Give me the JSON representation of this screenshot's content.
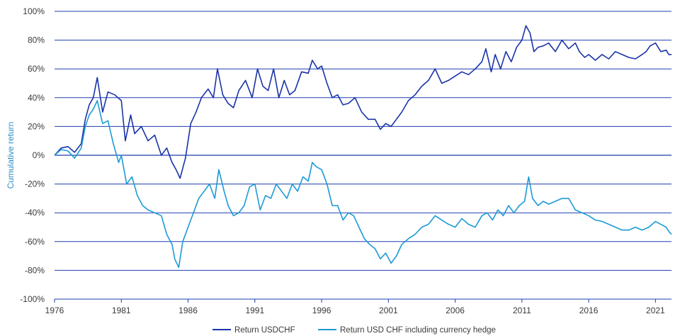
{
  "chart_data": {
    "type": "line",
    "title": "",
    "xlabel": "",
    "ylabel": "Cumulative return",
    "xlim": [
      1976,
      2022.2
    ],
    "ylim": [
      -100,
      100
    ],
    "x_ticks": [
      "1976",
      "1981",
      "1986",
      "1991",
      "1996",
      "2001",
      "2006",
      "2011",
      "2016",
      "2021"
    ],
    "y_ticks": [
      "100%",
      "80%",
      "60%",
      "40%",
      "20%",
      "0%",
      "-20%",
      "-40%",
      "-60%",
      "-80%",
      "-100%"
    ],
    "grid": true,
    "legend_position": "bottom",
    "series": [
      {
        "name": "Return USDCHF",
        "color": "#1a33a8",
        "x": [
          1976,
          1976.5,
          1977,
          1977.5,
          1978,
          1978.3,
          1978.6,
          1978.9,
          1979.2,
          1979.6,
          1980,
          1980.5,
          1981,
          1981.3,
          1981.7,
          1982,
          1982.5,
          1983,
          1983.5,
          1984,
          1984.4,
          1984.8,
          1985.1,
          1985.4,
          1985.8,
          1986.2,
          1986.6,
          1987,
          1987.5,
          1987.9,
          1988.2,
          1988.6,
          1989,
          1989.4,
          1989.8,
          1990.3,
          1990.8,
          1991.2,
          1991.6,
          1992,
          1992.4,
          1992.8,
          1993.2,
          1993.6,
          1994,
          1994.5,
          1995,
          1995.3,
          1995.7,
          1996,
          1996.4,
          1996.8,
          1997.2,
          1997.6,
          1998,
          1998.5,
          1999,
          1999.5,
          2000,
          2000.4,
          2000.8,
          2001.2,
          2001.6,
          2002,
          2002.5,
          2003,
          2003.5,
          2004,
          2004.5,
          2005,
          2005.5,
          2006,
          2006.5,
          2007,
          2007.5,
          2008,
          2008.3,
          2008.7,
          2009,
          2009.4,
          2009.8,
          2010.2,
          2010.6,
          2011,
          2011.3,
          2011.6,
          2011.9,
          2012.2,
          2012.6,
          2013,
          2013.5,
          2014,
          2014.5,
          2015,
          2015.3,
          2015.7,
          2016,
          2016.5,
          2017,
          2017.5,
          2018,
          2018.5,
          2019,
          2019.5,
          2020,
          2020.3,
          2020.6,
          2021,
          2021.4,
          2021.8,
          2022,
          2022.2
        ],
        "values": [
          0,
          5,
          6,
          2,
          8,
          25,
          35,
          40,
          54,
          30,
          44,
          42,
          38,
          10,
          28,
          15,
          20,
          10,
          14,
          0,
          5,
          -5,
          -10,
          -16,
          -2,
          22,
          30,
          40,
          46,
          40,
          60,
          42,
          36,
          33,
          45,
          52,
          40,
          60,
          48,
          45,
          60,
          40,
          52,
          42,
          45,
          58,
          57,
          66,
          60,
          62,
          50,
          40,
          42,
          35,
          36,
          40,
          30,
          25,
          25,
          18,
          22,
          20,
          25,
          30,
          38,
          42,
          48,
          52,
          60,
          50,
          52,
          55,
          58,
          56,
          60,
          65,
          74,
          58,
          70,
          60,
          72,
          65,
          75,
          80,
          90,
          85,
          72,
          75,
          76,
          78,
          72,
          80,
          74,
          78,
          72,
          68,
          70,
          66,
          70,
          67,
          72,
          70,
          68,
          67,
          70,
          72,
          76,
          78,
          72,
          73,
          70,
          70
        ]
      },
      {
        "name": "Return USD CHF including currency hedge",
        "color": "#1b9ad6",
        "x": [
          1976,
          1976.5,
          1977,
          1977.5,
          1978,
          1978.3,
          1978.6,
          1978.9,
          1979.2,
          1979.6,
          1980,
          1980.4,
          1980.8,
          1981,
          1981.4,
          1981.8,
          1982.2,
          1982.6,
          1983,
          1983.5,
          1984,
          1984.4,
          1984.8,
          1985,
          1985.3,
          1985.6,
          1986,
          1986.4,
          1986.8,
          1987.2,
          1987.6,
          1988,
          1988.3,
          1988.7,
          1989,
          1989.4,
          1989.8,
          1990.2,
          1990.6,
          1991,
          1991.4,
          1991.8,
          1992.2,
          1992.6,
          1993,
          1993.4,
          1993.8,
          1994.2,
          1994.6,
          1995,
          1995.3,
          1995.6,
          1996,
          1996.4,
          1996.8,
          1997.2,
          1997.6,
          1998,
          1998.4,
          1998.8,
          1999.2,
          1999.6,
          2000,
          2000.4,
          2000.8,
          2001.2,
          2001.6,
          2002,
          2002.5,
          2003,
          2003.5,
          2004,
          2004.5,
          2005,
          2005.5,
          2006,
          2006.5,
          2007,
          2007.5,
          2008,
          2008.4,
          2008.8,
          2009.2,
          2009.6,
          2010,
          2010.4,
          2010.8,
          2011.2,
          2011.5,
          2011.8,
          2012.2,
          2012.6,
          2013,
          2013.5,
          2014,
          2014.5,
          2015,
          2015.5,
          2016,
          2016.5,
          2017,
          2017.5,
          2018,
          2018.5,
          2019,
          2019.5,
          2020,
          2020.5,
          2021,
          2021.4,
          2021.8,
          2022,
          2022.2
        ],
        "values": [
          0,
          4,
          3,
          -2,
          5,
          20,
          28,
          32,
          38,
          22,
          24,
          8,
          -5,
          0,
          -20,
          -15,
          -28,
          -35,
          -38,
          -40,
          -42,
          -55,
          -62,
          -72,
          -78,
          -60,
          -50,
          -40,
          -30,
          -25,
          -20,
          -30,
          -10,
          -25,
          -35,
          -42,
          -40,
          -35,
          -22,
          -20,
          -38,
          -28,
          -30,
          -20,
          -25,
          -30,
          -20,
          -25,
          -15,
          -18,
          -5,
          -8,
          -10,
          -20,
          -35,
          -35,
          -45,
          -40,
          -42,
          -50,
          -58,
          -62,
          -65,
          -72,
          -68,
          -75,
          -70,
          -62,
          -58,
          -55,
          -50,
          -48,
          -42,
          -45,
          -48,
          -50,
          -44,
          -48,
          -50,
          -42,
          -40,
          -45,
          -38,
          -42,
          -35,
          -40,
          -35,
          -32,
          -15,
          -30,
          -35,
          -32,
          -34,
          -32,
          -30,
          -30,
          -38,
          -40,
          -42,
          -45,
          -46,
          -48,
          -50,
          -52,
          -52,
          -50,
          -52,
          -50,
          -46,
          -48,
          -50,
          -53,
          -55
        ]
      }
    ]
  }
}
